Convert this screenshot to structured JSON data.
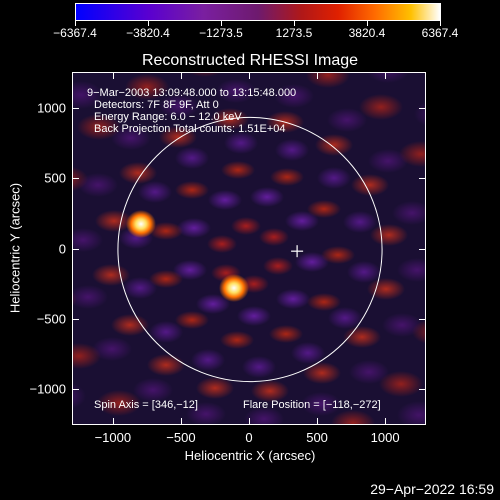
{
  "colorbar": {
    "tick_labels": [
      "−6367.4",
      "−3820.4",
      "−1273.5",
      "1273.5",
      "3820.4",
      "6367.4"
    ],
    "tick_values": [
      -6367.4,
      -3820.4,
      -1273.5,
      1273.5,
      3820.4,
      6367.4
    ],
    "range": [
      -6367.4,
      6367.4
    ]
  },
  "plot": {
    "title": "Reconstructed RHESSI Image",
    "info_lines": [
      "9−Mar−2003 13:09:48.000 to 13:15:48.000",
      "Detectors: 7F 8F 9F, Att 0",
      "Energy Range: 6.0 − 12.0 keV",
      "Back Projection    Total counts: 1.51E+04"
    ],
    "spin_axis": "Spin Axis = [346,−12]",
    "flare_position": "Flare Position = [−118,−272]",
    "xlabel": "Heliocentric X (arcsec)",
    "ylabel": "Heliocentric Y (arcsec)",
    "footer_date": "29−Apr−2022 16:59"
  },
  "chart_data": {
    "type": "heatmap",
    "title": "Reconstructed RHESSI Image",
    "xlabel": "Heliocentric X (arcsec)",
    "ylabel": "Heliocentric Y (arcsec)",
    "xlim": [
      -1300,
      1300
    ],
    "ylim": [
      -1260,
      1260
    ],
    "x_ticks": [
      -1000,
      -500,
      0,
      500,
      1000
    ],
    "x_tick_labels": [
      "−1000",
      "−500",
      "0",
      "500",
      "1000"
    ],
    "y_ticks": [
      1000,
      500,
      0,
      -500,
      -1000
    ],
    "y_tick_labels": [
      "1000",
      "500",
      "0",
      "−500",
      "−1000"
    ],
    "colorbar_range": [
      -6367.4,
      6367.4
    ],
    "bright_sources": [
      {
        "x": -800,
        "y": 180
      },
      {
        "x": -118,
        "y": -272
      }
    ],
    "solar_disk": {
      "center": [
        0,
        0
      ],
      "radius": 970
    },
    "spin_axis": [
      346,
      -12
    ],
    "flare_position": [
      -118,
      -272
    ]
  }
}
